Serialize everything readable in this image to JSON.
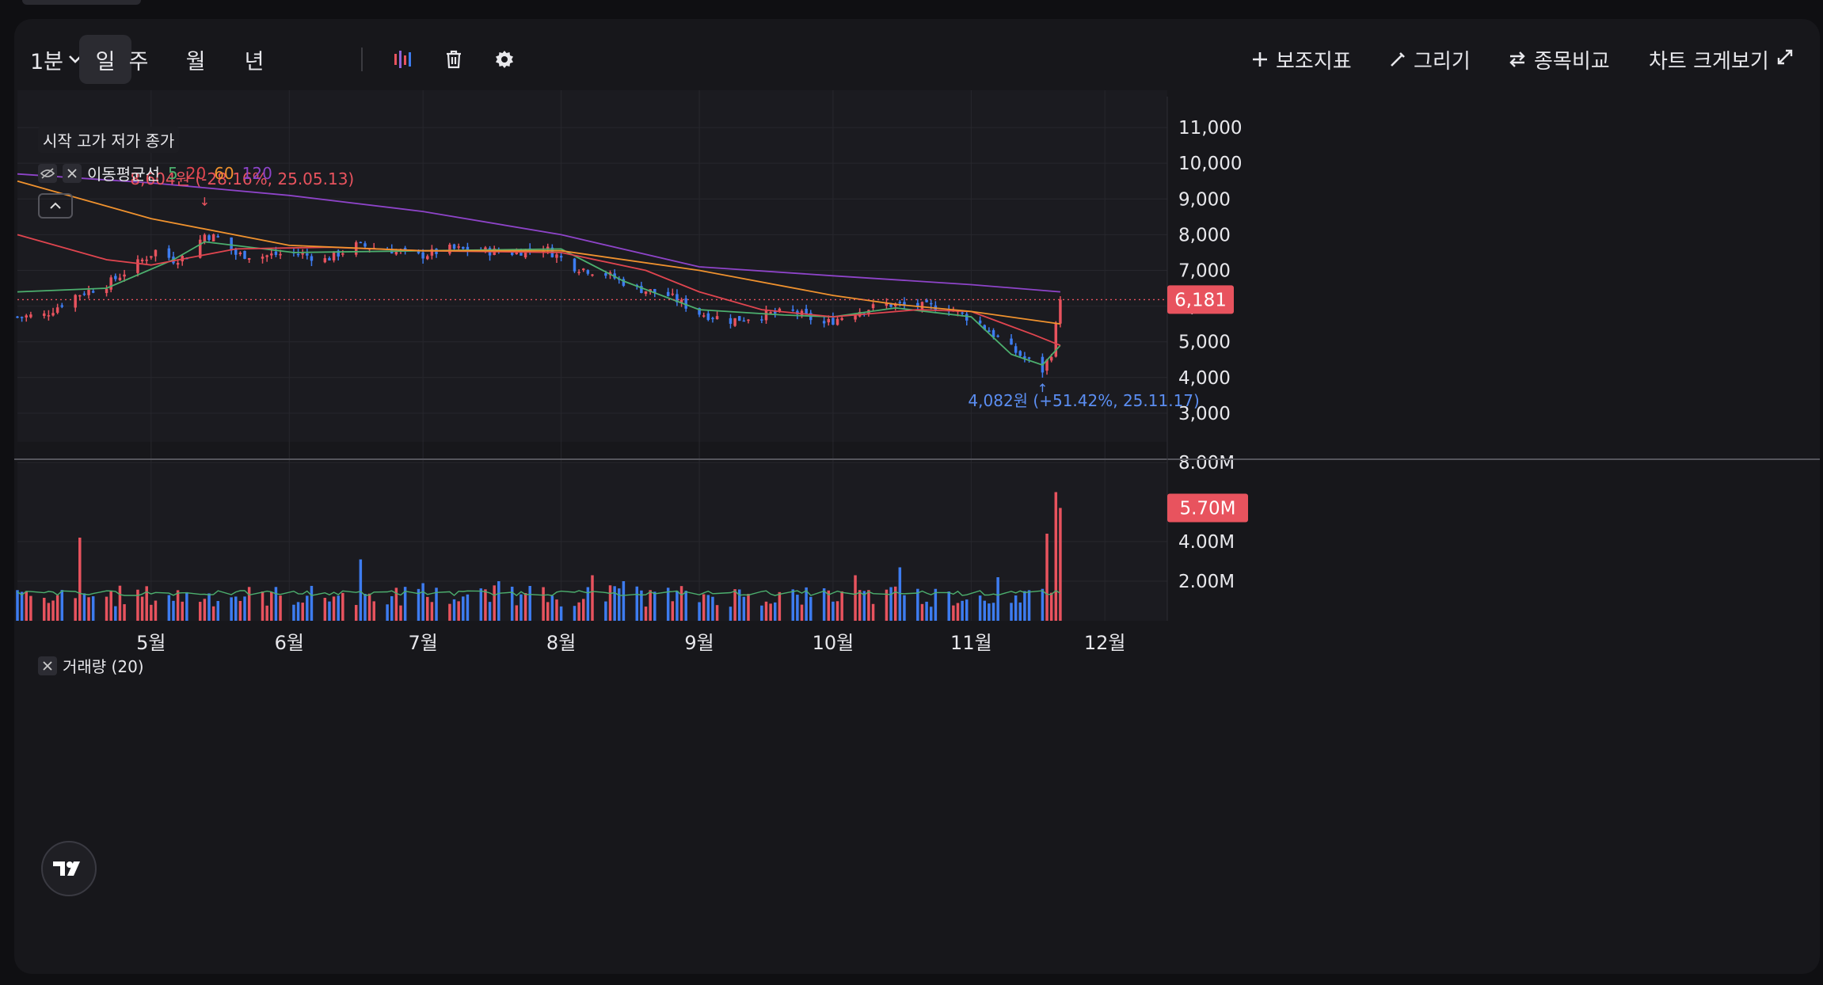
{
  "toolbar": {
    "interval": "1분",
    "periods": [
      "일",
      "주",
      "월",
      "년"
    ],
    "active_period": "일",
    "indicator_label": "보조지표",
    "draw_label": "그리기",
    "compare_label": "종목비교",
    "fullscreen_label": "차트 크게보기"
  },
  "legend": {
    "ohlc_label": "시작 고가 저가 종가",
    "ma_label": "이동평균선",
    "ma_periods": [
      "5",
      "20",
      "60",
      "120"
    ],
    "ma_colors": [
      "#4caf6e",
      "#e0454f",
      "#f0922e",
      "#8e44c9"
    ],
    "volume_label": "거래량 (20)"
  },
  "colors": {
    "up": "#e8535e",
    "down": "#3d7cf0",
    "background": "#17171b"
  },
  "chart_data": {
    "type": "candlestick",
    "price_axis": {
      "ticks": [
        3000,
        4000,
        5000,
        6000,
        7000,
        8000,
        9000,
        10000,
        11000
      ],
      "tick_labels": [
        "3,000",
        "4,000",
        "5,000",
        "6,000",
        "7,000",
        "8,000",
        "9,000",
        "10,000",
        "11,000"
      ],
      "range": [
        2200,
        11600
      ]
    },
    "volume_axis": {
      "ticks": [
        2000000,
        4000000,
        8000000
      ],
      "tick_labels": [
        "2.00M",
        "4.00M",
        "8.00M"
      ],
      "range": [
        0,
        8000000
      ]
    },
    "x_axis": {
      "labels": [
        "5월",
        "6월",
        "7월",
        "8월",
        "9월",
        "10월",
        "11월",
        "12월"
      ],
      "label_dates": [
        "2025-05-01",
        "2025-06-01",
        "2025-07-01",
        "2025-08-01",
        "2025-09-01",
        "2025-10-01",
        "2025-11-01",
        "2025-12-01"
      ],
      "range": [
        "2025-04-01",
        "2025-12-15"
      ]
    },
    "close_points": [
      [
        "2025-04-01",
        5700
      ],
      [
        "2025-04-07",
        5750
      ],
      [
        "2025-04-14",
        6300
      ],
      [
        "2025-04-21",
        6600
      ],
      [
        "2025-04-28",
        7200
      ],
      [
        "2025-05-02",
        7550
      ],
      [
        "2025-05-06",
        7300
      ],
      [
        "2025-05-09",
        7400
      ],
      [
        "2025-05-13",
        8000
      ],
      [
        "2025-05-16",
        7900
      ],
      [
        "2025-05-20",
        7450
      ],
      [
        "2025-05-26",
        7400
      ],
      [
        "2025-06-02",
        7500
      ],
      [
        "2025-06-09",
        7300
      ],
      [
        "2025-06-16",
        7700
      ],
      [
        "2025-06-23",
        7600
      ],
      [
        "2025-06-30",
        7400
      ],
      [
        "2025-07-07",
        7600
      ],
      [
        "2025-07-14",
        7550
      ],
      [
        "2025-07-21",
        7500
      ],
      [
        "2025-07-28",
        7650
      ],
      [
        "2025-08-04",
        7100
      ],
      [
        "2025-08-11",
        6900
      ],
      [
        "2025-08-18",
        6500
      ],
      [
        "2025-08-25",
        6300
      ],
      [
        "2025-09-01",
        5800
      ],
      [
        "2025-09-08",
        5600
      ],
      [
        "2025-09-15",
        5750
      ],
      [
        "2025-09-22",
        5850
      ],
      [
        "2025-09-29",
        5500
      ],
      [
        "2025-10-06",
        5850
      ],
      [
        "2025-10-13",
        6050
      ],
      [
        "2025-10-20",
        6000
      ],
      [
        "2025-10-27",
        5950
      ],
      [
        "2025-11-03",
        5500
      ],
      [
        "2025-11-10",
        4800
      ],
      [
        "2025-11-14",
        4450
      ],
      [
        "2025-11-17",
        4200
      ],
      [
        "2025-11-19",
        4700
      ],
      [
        "2025-11-21",
        6181
      ]
    ],
    "moving_averages": [
      {
        "name": "5",
        "points": [
          [
            "2025-04-01",
            6400
          ],
          [
            "2025-04-21",
            6500
          ],
          [
            "2025-05-06",
            7300
          ],
          [
            "2025-05-13",
            7800
          ],
          [
            "2025-06-02",
            7500
          ],
          [
            "2025-07-01",
            7550
          ],
          [
            "2025-08-01",
            7600
          ],
          [
            "2025-08-15",
            6700
          ],
          [
            "2025-09-01",
            5900
          ],
          [
            "2025-09-20",
            5750
          ],
          [
            "2025-10-01",
            5700
          ],
          [
            "2025-10-15",
            5950
          ],
          [
            "2025-11-01",
            5700
          ],
          [
            "2025-11-10",
            4650
          ],
          [
            "2025-11-17",
            4350
          ],
          [
            "2025-11-21",
            4900
          ]
        ]
      },
      {
        "name": "20",
        "points": [
          [
            "2025-04-01",
            8000
          ],
          [
            "2025-04-21",
            7300
          ],
          [
            "2025-05-01",
            7150
          ],
          [
            "2025-05-20",
            7600
          ],
          [
            "2025-06-10",
            7650
          ],
          [
            "2025-07-01",
            7550
          ],
          [
            "2025-08-01",
            7500
          ],
          [
            "2025-08-20",
            7000
          ],
          [
            "2025-09-01",
            6400
          ],
          [
            "2025-09-15",
            5900
          ],
          [
            "2025-10-01",
            5700
          ],
          [
            "2025-10-20",
            5900
          ],
          [
            "2025-11-01",
            5850
          ],
          [
            "2025-11-15",
            5200
          ],
          [
            "2025-11-21",
            4900
          ]
        ]
      },
      {
        "name": "60",
        "points": [
          [
            "2025-04-01",
            9500
          ],
          [
            "2025-05-01",
            8450
          ],
          [
            "2025-06-01",
            7700
          ],
          [
            "2025-07-01",
            7550
          ],
          [
            "2025-08-01",
            7550
          ],
          [
            "2025-09-01",
            7000
          ],
          [
            "2025-10-01",
            6300
          ],
          [
            "2025-10-15",
            6050
          ],
          [
            "2025-11-01",
            5850
          ],
          [
            "2025-11-21",
            5500
          ]
        ]
      },
      {
        "name": "120",
        "points": [
          [
            "2025-04-01",
            9700
          ],
          [
            "2025-05-01",
            9450
          ],
          [
            "2025-06-01",
            9100
          ],
          [
            "2025-07-01",
            8650
          ],
          [
            "2025-08-01",
            8000
          ],
          [
            "2025-09-01",
            7100
          ],
          [
            "2025-10-01",
            6850
          ],
          [
            "2025-11-01",
            6600
          ],
          [
            "2025-11-21",
            6400
          ]
        ]
      }
    ],
    "last_price": 6181,
    "last_price_label": "6,181",
    "last_volume": 5700000,
    "last_volume_label": "5.70M",
    "annotations": [
      {
        "text": "8,604원 (-28.16%, 25.05.13)",
        "date": "2025-05-13",
        "price": 8604,
        "kind": "high"
      },
      {
        "text": "4,082원 (+51.42%, 25.11.17)",
        "date": "2025-11-17",
        "price": 4082,
        "kind": "low"
      }
    ],
    "volume_spikes": [
      [
        "2025-04-03",
        1500000
      ],
      [
        "2025-04-15",
        4200000
      ],
      [
        "2025-06-17",
        3100000
      ],
      [
        "2025-07-01",
        1900000
      ],
      [
        "2025-07-18",
        2000000
      ],
      [
        "2025-08-08",
        2300000
      ],
      [
        "2025-08-15",
        2000000
      ],
      [
        "2025-10-06",
        2300000
      ],
      [
        "2025-10-16",
        2700000
      ],
      [
        "2025-11-07",
        2200000
      ],
      [
        "2025-11-13",
        1500000
      ],
      [
        "2025-11-18",
        4400000
      ],
      [
        "2025-11-20",
        6500000
      ],
      [
        "2025-11-21",
        5700000
      ]
    ],
    "volume_ma20_level": 1400000
  }
}
